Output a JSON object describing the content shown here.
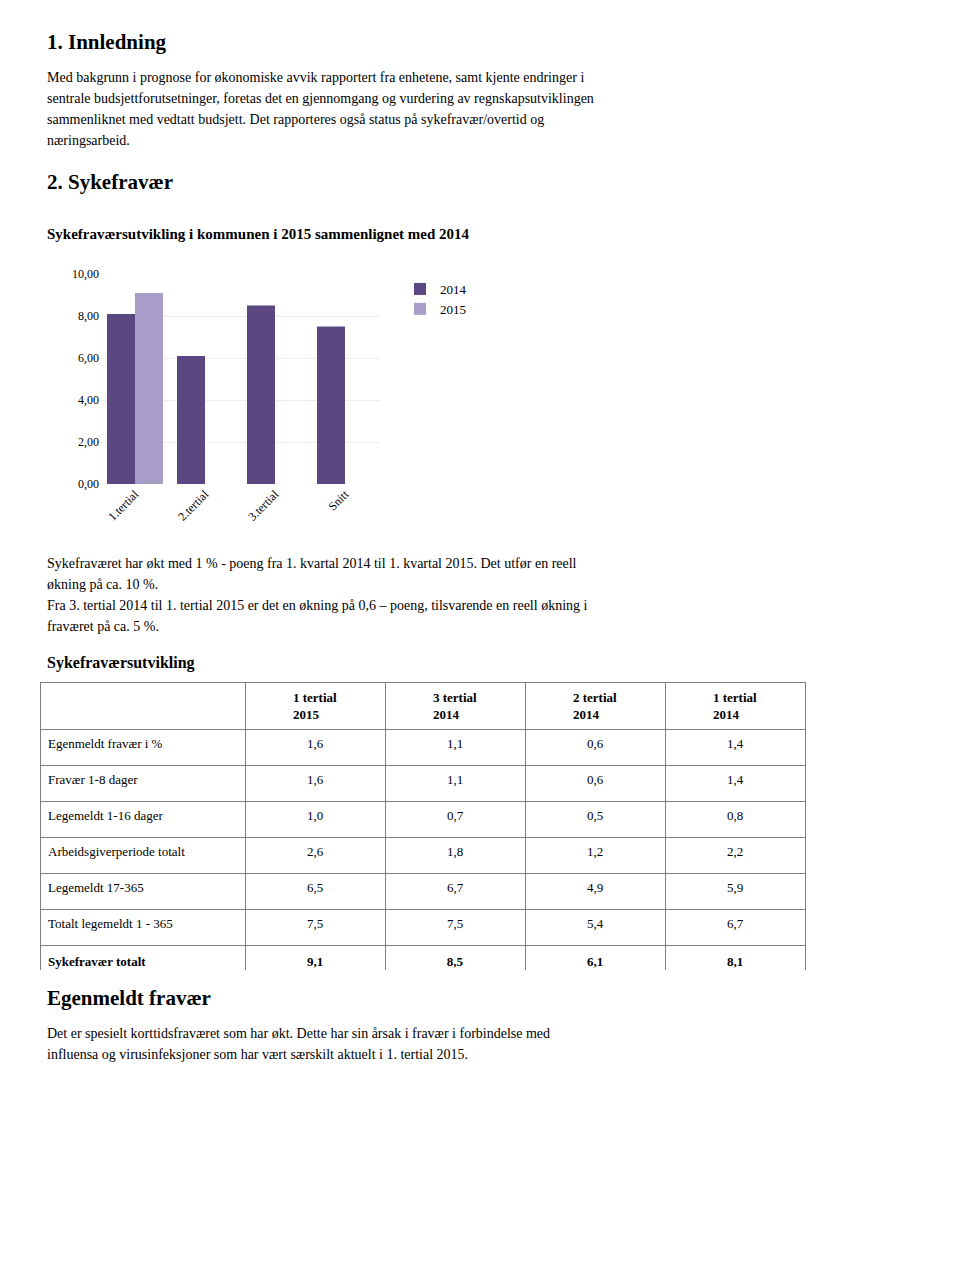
{
  "chart_data": [
    {
      "type": "text",
      "title": "1. Innledning",
      "annotations": [
        "Med bakgrunn i prognose for økonomiske avvik rapportert fra enhetene, samt kjente endringer i",
        "sentrale budsjettforutsetninger, foretas det en gjennomgang og vurdering av regnskapsutviklingen",
        "sammenliknet med vedtatt budsjett. Det rapporteres også status på sykefravær/overtid og",
        "næringsarbeid."
      ]
    },
    {
      "type": "text",
      "title": "2. Sykefravær"
    },
    {
      "type": "bar",
      "title": "Sykefraværsutvikling i kommunen i 2015 sammenlignet med 2014",
      "categories": [
        "1.tertial",
        "2.tertial",
        "3.tertial",
        "Snitt"
      ],
      "series": [
        {
          "name": "2014",
          "color": "#5b4882",
          "values": [
            8.1,
            6.1,
            8.5,
            7.5
          ]
        },
        {
          "name": "2015",
          "color": "#a89cc8",
          "values": [
            9.1,
            0.0,
            0.0,
            0.0
          ]
        }
      ],
      "ylim": [
        0,
        10
      ],
      "yticks": [
        {
          "value": 0,
          "label": "0,00"
        },
        {
          "value": 2,
          "label": "2,00"
        },
        {
          "value": 4,
          "label": "4,00"
        },
        {
          "value": 6,
          "label": "6,00"
        },
        {
          "value": 8,
          "label": "8,00"
        },
        {
          "value": 10,
          "label": "10,00"
        }
      ],
      "grid": true,
      "legend": "right",
      "annotations": [
        "Sykefraværet har økt med 1 % - poeng fra 1. kvartal 2014 til 1. kvartal 2015. Det utfør en reell",
        "økning på ca. 10 %.",
        "Fra 3. tertial 2014 til 1. tertial 2015 er det en økning på 0,6 – poeng, tilsvarende en reell økning i",
        "fraværet på ca. 5 %."
      ]
    },
    {
      "type": "table",
      "title": "Sykefraværsutvikling",
      "columns": [
        "1 tertial\n2015",
        "3 tertial\n2014",
        "2 tertial\n2014",
        "1 tertial\n2014"
      ],
      "row_labels": [
        "Egenmeldt fravær i %",
        "Fravær 1-8 dager",
        "Legemeldt 1-16 dager",
        "Arbeidsgiverperiode totalt",
        "Legemeldt 17-365",
        "Totalt legemeldt 1 - 365",
        "Sykefravær totalt"
      ],
      "cells": [
        [
          "1,6",
          "1,1",
          "0,6",
          "1,4"
        ],
        [
          "1,6",
          "1,1",
          "0,6",
          "1,4"
        ],
        [
          "1,0",
          "0,7",
          "0,5",
          "0,8"
        ],
        [
          "2,6",
          "1,8",
          "1,2",
          "2,2"
        ],
        [
          "6,5",
          "6,7",
          "4,9",
          "5,9"
        ],
        [
          "7,5",
          "7,5",
          "5,4",
          "6,7"
        ],
        [
          "9,1",
          "8,5",
          "6,1",
          "8,1"
        ]
      ]
    },
    {
      "type": "text",
      "title": "Egenmeldt fravær",
      "annotations": [
        "Det er spesielt korttidsfraværet som har økt. Dette har sin årsak i fravær i forbindelse med",
        "influensa og virusinfeksjoner som har vært særskilt aktuelt i 1. tertial 2015."
      ]
    }
  ]
}
